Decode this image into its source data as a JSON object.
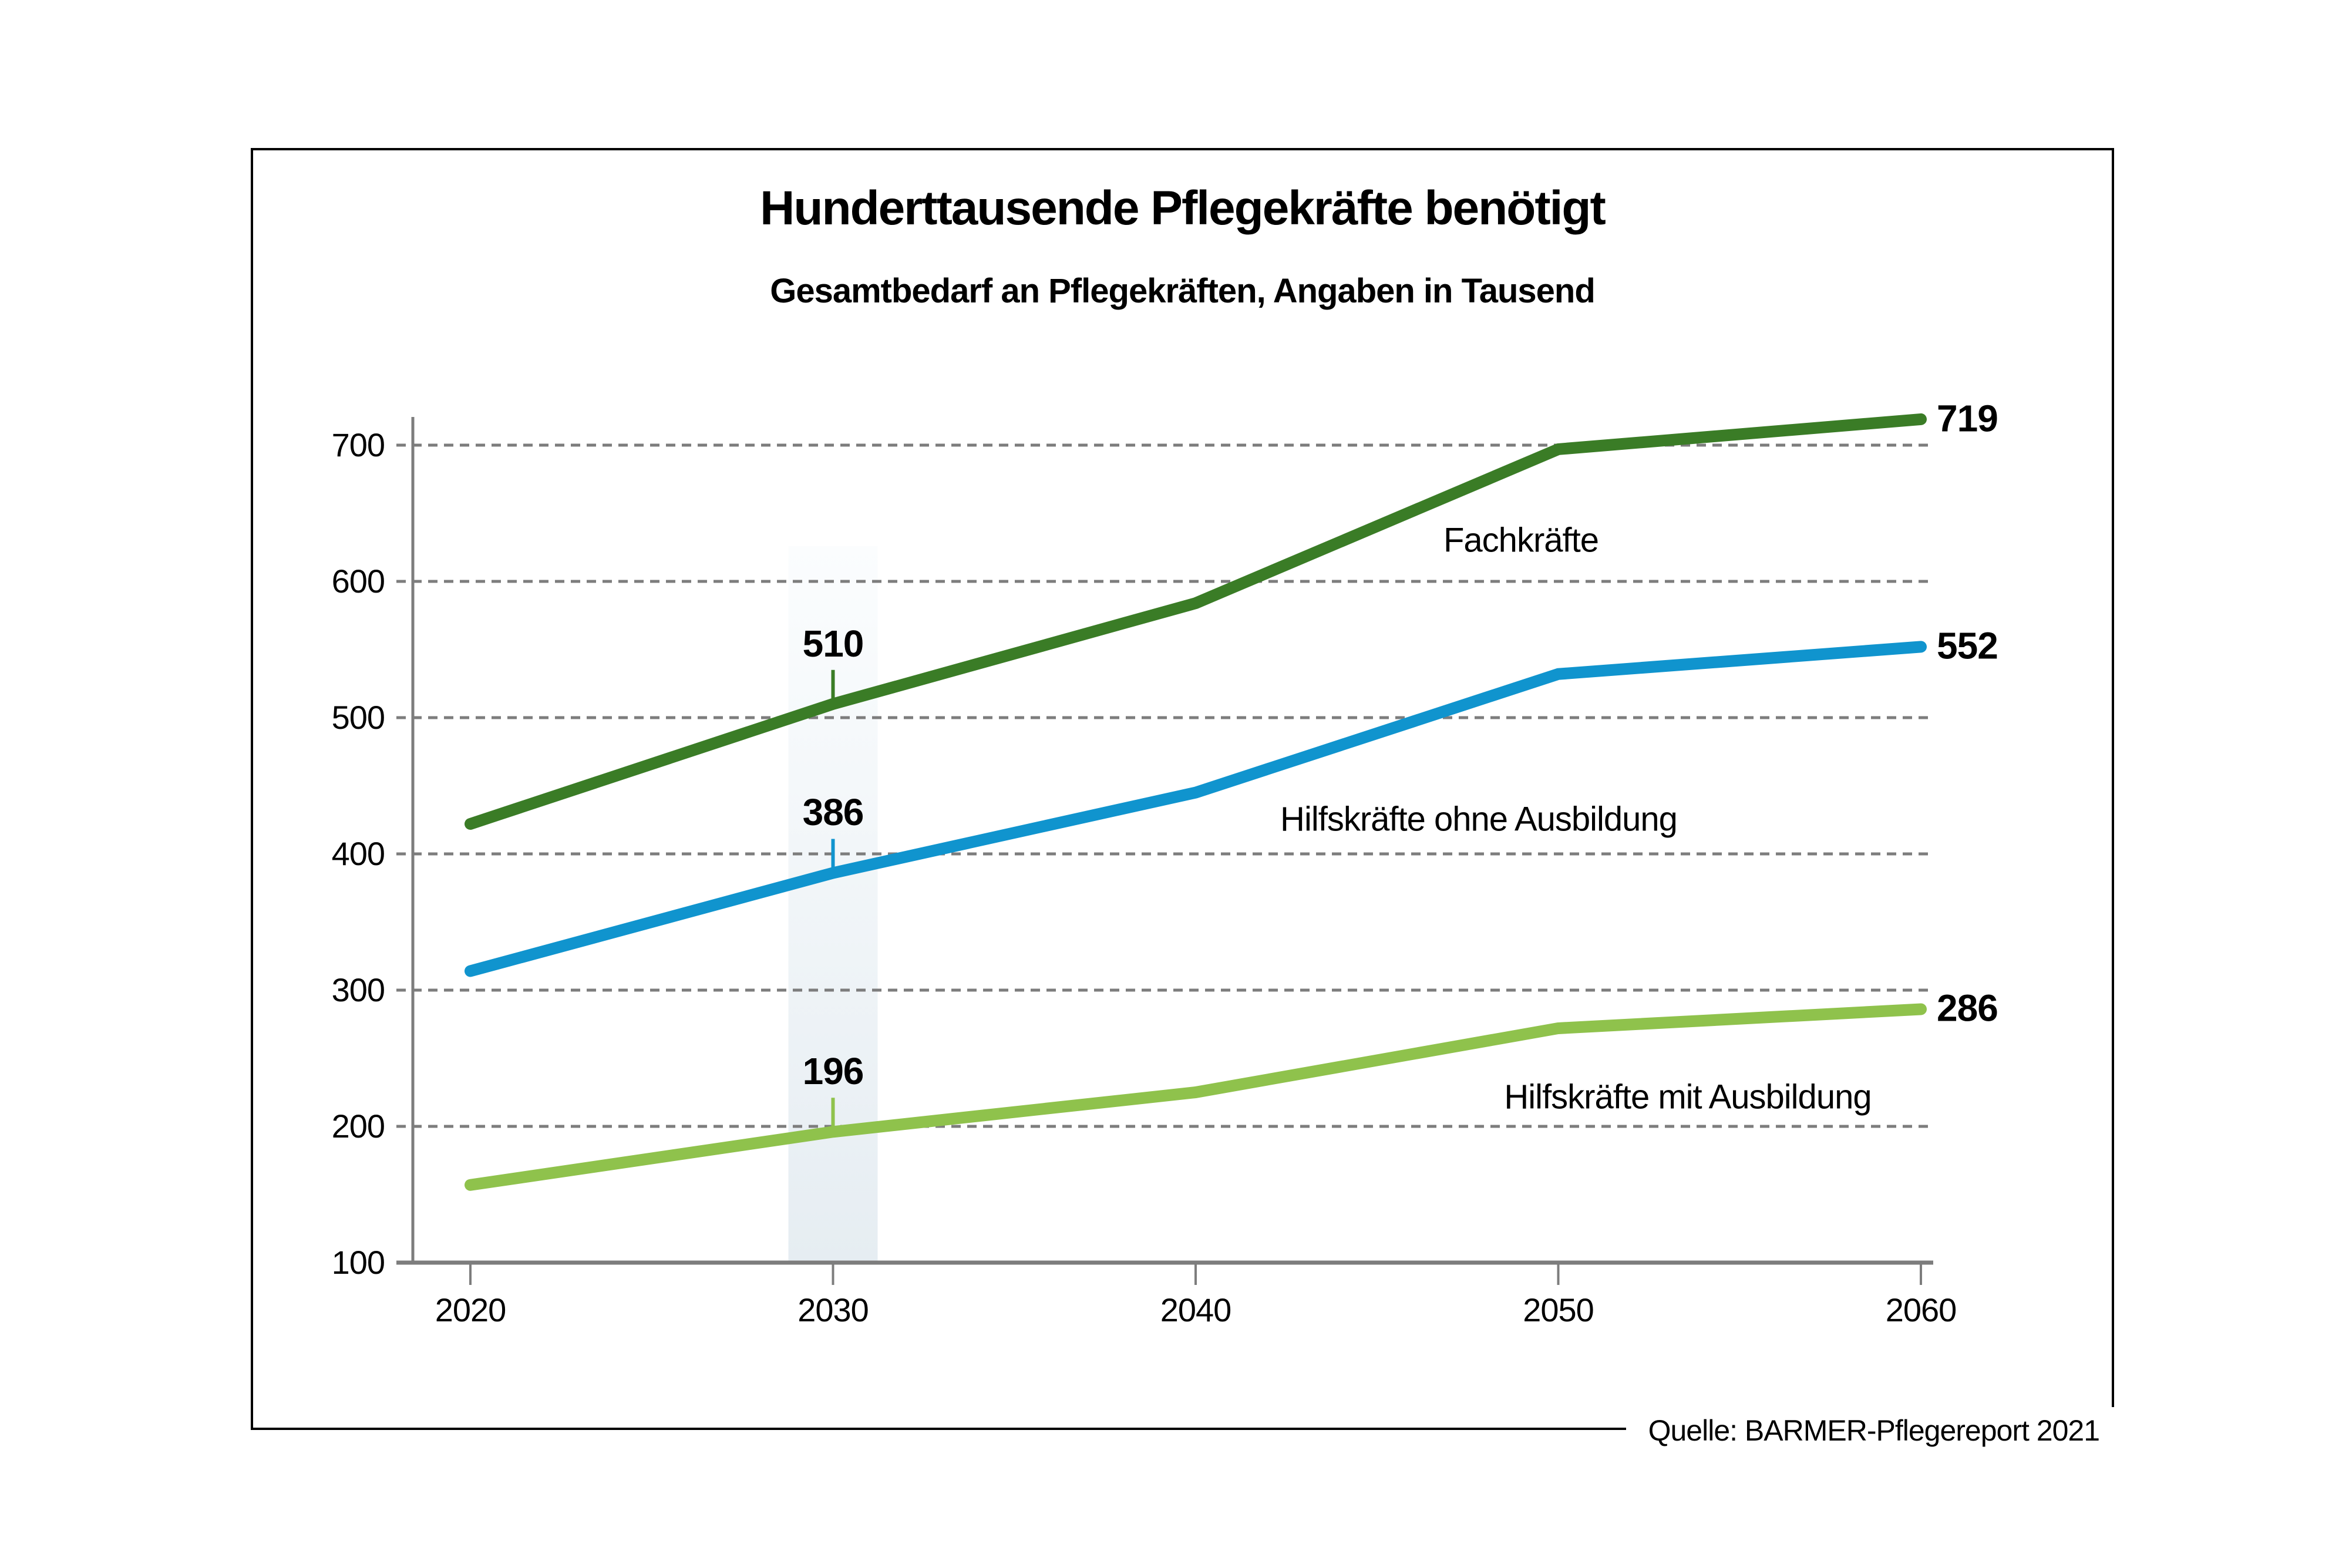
{
  "chart_data": {
    "type": "line",
    "title": "Hunderttausende Pflegekräfte benötigt",
    "subtitle": "Gesamtbedarf an Pflegekräften, Angaben in Tausend",
    "source": "Quelle: BARMER-Pflegereport 2021",
    "x": [
      2020,
      2030,
      2040,
      2050,
      2060
    ],
    "ylim": [
      100,
      700
    ],
    "yticks": [
      100,
      200,
      300,
      400,
      500,
      600,
      700
    ],
    "grid": "dashed horizontal gridlines at every 100",
    "legend_position": "inline labels beside lines",
    "series": [
      {
        "name": "Fachkräfte",
        "color": "#3a7c26",
        "values": [
          422,
          510,
          584,
          697,
          719
        ]
      },
      {
        "name": "Hilfskräfte ohne Ausbildung",
        "color": "#1094ce",
        "values": [
          314,
          386,
          445,
          532,
          552
        ]
      },
      {
        "name": "Hilfskräfte mit Ausbildung",
        "color": "#8fc24c",
        "values": [
          157,
          196,
          225,
          272,
          286
        ]
      }
    ],
    "annotations": {
      "highlight_band_year": 2030,
      "value_labels_at_years": [
        2030,
        2060
      ]
    },
    "colors": {
      "grid": "#7d7d7d",
      "axis": "#7d7d7d",
      "highlight_band_top": "#fbfdfe",
      "highlight_band_bottom": "#e6edf2",
      "text": "#000000",
      "frame_border": "#000000",
      "background": "#ffffff"
    }
  }
}
